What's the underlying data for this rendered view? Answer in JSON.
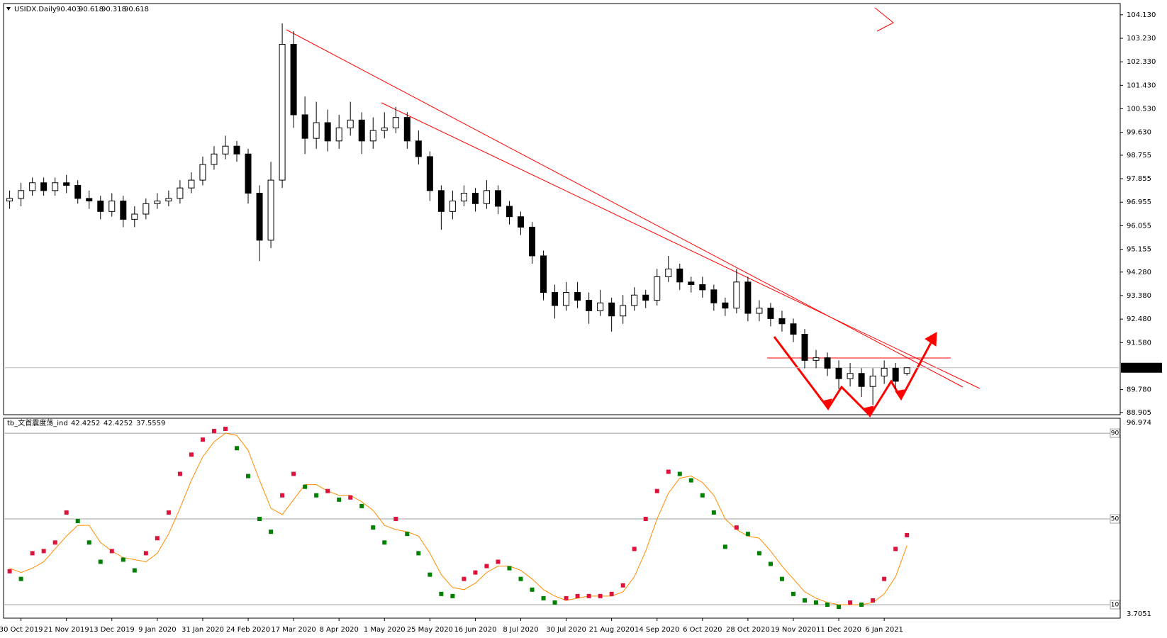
{
  "chart_data": [
    {
      "type": "candlestick",
      "title": "USIDX.Daily",
      "categories": [
        null,
        "30 Oct 2019",
        null,
        null,
        null,
        "21 Nov 2019",
        null,
        null,
        null,
        "13 Dec 2019",
        null,
        null,
        null,
        "9 Jan 2020",
        null,
        null,
        null,
        "31 Jan 2020",
        null,
        null,
        null,
        "24 Feb 2020",
        null,
        null,
        null,
        "17 Mar 2020",
        null,
        null,
        null,
        "8 Apr 2020",
        null,
        null,
        null,
        "1 May 2020",
        null,
        null,
        null,
        "25 May 2020",
        null,
        null,
        null,
        "16 Jun 2020",
        null,
        null,
        null,
        "8 Jul 2020",
        null,
        null,
        null,
        "30 Jul 2020",
        null,
        null,
        null,
        "21 Aug 2020",
        null,
        null,
        null,
        "14 Sep 2020",
        null,
        null,
        null,
        "6 Oct 2020",
        null,
        null,
        null,
        "28 Oct 2020",
        null,
        null,
        null,
        "19 Nov 2020",
        null,
        null,
        null,
        "11 Dec 2020",
        null,
        null,
        null,
        "6 Jan 2021",
        null,
        null
      ],
      "open": [
        97.0,
        97.1,
        97.4,
        97.7,
        97.4,
        97.7,
        97.6,
        97.1,
        97.0,
        96.6,
        97.0,
        96.3,
        96.5,
        96.9,
        97.0,
        97.1,
        97.5,
        97.8,
        98.4,
        98.8,
        99.1,
        98.8,
        97.3,
        95.5,
        97.8,
        103.0,
        100.3,
        99.4,
        100.0,
        99.3,
        99.8,
        100.1,
        99.3,
        99.7,
        99.8,
        100.2,
        99.3,
        98.7,
        97.4,
        96.6,
        97.0,
        97.3,
        96.9,
        97.4,
        96.8,
        96.4,
        96.0,
        94.9,
        93.5,
        93.0,
        93.5,
        93.2,
        92.8,
        93.1,
        92.6,
        93.0,
        93.4,
        93.2,
        94.1,
        94.4,
        93.9,
        93.8,
        93.6,
        93.1,
        92.9,
        93.9,
        92.7,
        92.9,
        92.5,
        92.3,
        91.9,
        90.9,
        91.0,
        90.6,
        90.2,
        90.4,
        89.9,
        90.3,
        90.6,
        90.403
      ],
      "high": [
        97.4,
        97.7,
        97.9,
        97.9,
        97.9,
        98.0,
        97.8,
        97.4,
        97.2,
        97.3,
        97.2,
        96.8,
        97.1,
        97.3,
        97.4,
        97.8,
        98.1,
        98.7,
        99.1,
        99.5,
        99.3,
        99.0,
        97.6,
        98.5,
        103.8,
        103.5,
        101.0,
        100.8,
        100.5,
        100.3,
        100.8,
        100.4,
        100.2,
        100.4,
        100.6,
        100.4,
        99.7,
        98.9,
        97.6,
        97.4,
        97.6,
        97.5,
        97.8,
        97.6,
        97.0,
        96.6,
        96.2,
        95.1,
        93.8,
        93.9,
        93.9,
        93.5,
        93.6,
        93.3,
        93.4,
        93.7,
        93.6,
        94.4,
        94.9,
        94.6,
        94.1,
        94.1,
        93.8,
        93.3,
        94.4,
        94.1,
        93.2,
        93.1,
        92.8,
        92.5,
        92.1,
        91.3,
        91.2,
        90.9,
        90.8,
        90.6,
        90.6,
        90.9,
        90.8,
        90.618
      ],
      "low": [
        96.7,
        96.8,
        97.2,
        97.2,
        97.2,
        97.3,
        96.9,
        96.7,
        96.3,
        96.4,
        96.0,
        96.0,
        96.3,
        96.7,
        96.8,
        96.9,
        97.3,
        97.6,
        98.2,
        98.6,
        98.5,
        96.9,
        94.7,
        95.2,
        97.5,
        99.8,
        98.8,
        99.0,
        98.9,
        99.0,
        99.5,
        98.8,
        99.0,
        99.4,
        99.6,
        99.0,
        98.4,
        97.0,
        95.9,
        96.3,
        96.8,
        96.6,
        96.7,
        96.5,
        96.1,
        95.7,
        94.6,
        93.2,
        92.5,
        92.8,
        92.9,
        92.3,
        92.6,
        92.0,
        92.3,
        92.8,
        92.9,
        93.0,
        93.9,
        93.6,
        93.5,
        93.3,
        92.8,
        92.6,
        92.7,
        92.4,
        92.4,
        92.2,
        92.0,
        91.6,
        90.6,
        90.6,
        90.3,
        89.8,
        89.9,
        89.5,
        89.2,
        90.0,
        89.8,
        90.318
      ],
      "close": [
        97.1,
        97.4,
        97.7,
        97.4,
        97.7,
        97.6,
        97.1,
        97.0,
        96.6,
        97.0,
        96.3,
        96.5,
        96.9,
        97.0,
        97.1,
        97.5,
        97.8,
        98.4,
        98.8,
        99.1,
        98.8,
        97.3,
        95.5,
        97.8,
        103.0,
        100.3,
        99.4,
        100.0,
        99.3,
        99.8,
        100.1,
        99.3,
        99.7,
        99.8,
        100.2,
        99.3,
        98.7,
        97.4,
        96.6,
        97.0,
        97.3,
        96.9,
        97.4,
        96.8,
        96.4,
        96.0,
        94.9,
        93.5,
        93.0,
        93.5,
        93.2,
        92.8,
        93.1,
        92.6,
        93.0,
        93.4,
        93.2,
        94.1,
        94.4,
        93.9,
        93.8,
        93.6,
        93.1,
        92.9,
        93.9,
        92.7,
        92.9,
        92.5,
        92.3,
        91.9,
        90.9,
        91.0,
        90.6,
        90.2,
        90.4,
        89.9,
        90.3,
        90.6,
        90.1,
        90.618
      ],
      "ylim": [
        88.82,
        104.56
      ],
      "yticks": [
        {
          "value": 104.13,
          "label": "104.130"
        },
        {
          "value": 103.23,
          "label": "103.230"
        },
        {
          "value": 102.33,
          "label": "102.330"
        },
        {
          "value": 101.43,
          "label": "101.430"
        },
        {
          "value": 100.53,
          "label": "100.530"
        },
        {
          "value": 99.63,
          "label": "99.630"
        },
        98.755,
        97.855,
        96.955,
        96.055,
        95.155,
        {
          "value": 94.28,
          "label": "94.280"
        },
        {
          "value": 93.38,
          "label": "93.380"
        },
        {
          "value": 92.48,
          "label": "92.480"
        },
        {
          "value": 91.58,
          "label": "91.580"
        },
        {
          "value": 89.78,
          "label": "89.780"
        },
        88.905
      ],
      "bull_color": "#ffffff",
      "bear_color": "#000000"
    },
    {
      "type": "oscillator",
      "title": "tb_文首震度荡_ind",
      "values": [
        25.6,
        22,
        34,
        35,
        39,
        53,
        49,
        39,
        30,
        35,
        31,
        26,
        34,
        41,
        53,
        71,
        80,
        87,
        91,
        92,
        83,
        70,
        50,
        44,
        61,
        71,
        65,
        61,
        63,
        59,
        60,
        56,
        46,
        39,
        50,
        43,
        34,
        24,
        15,
        14,
        22,
        25,
        28,
        30,
        27,
        22,
        17,
        13,
        11,
        13,
        14,
        14,
        14,
        15,
        19,
        36,
        50,
        63,
        72,
        71,
        68,
        61,
        53,
        37,
        46,
        43,
        34,
        29,
        22,
        15,
        12,
        11,
        10,
        9,
        11,
        10,
        12,
        22,
        36,
        42.4252
      ],
      "signal": [
        27,
        25,
        27,
        30,
        36,
        42,
        47,
        47,
        39,
        35,
        32,
        31,
        30,
        34,
        43,
        55,
        68,
        79,
        86,
        90,
        89,
        82,
        68,
        55,
        52,
        59,
        66,
        66,
        63,
        61,
        61,
        58,
        54,
        47,
        45,
        44,
        42,
        34,
        24,
        18,
        17,
        20,
        25,
        28,
        28,
        26,
        22,
        17,
        14,
        12,
        13,
        14,
        14,
        14,
        16,
        23,
        35,
        50,
        62,
        69,
        70,
        67,
        61,
        50,
        45,
        42,
        41,
        35,
        28,
        22,
        16,
        13,
        11,
        10,
        10,
        10,
        11,
        15,
        23,
        37.5559
      ],
      "ylim": [
        3.7051,
        96.974
      ],
      "yticks": [
        90,
        50,
        10
      ],
      "up_color": "#dc143c",
      "down_color": "#008000",
      "signal_color": "#ff8c00"
    }
  ]
}
